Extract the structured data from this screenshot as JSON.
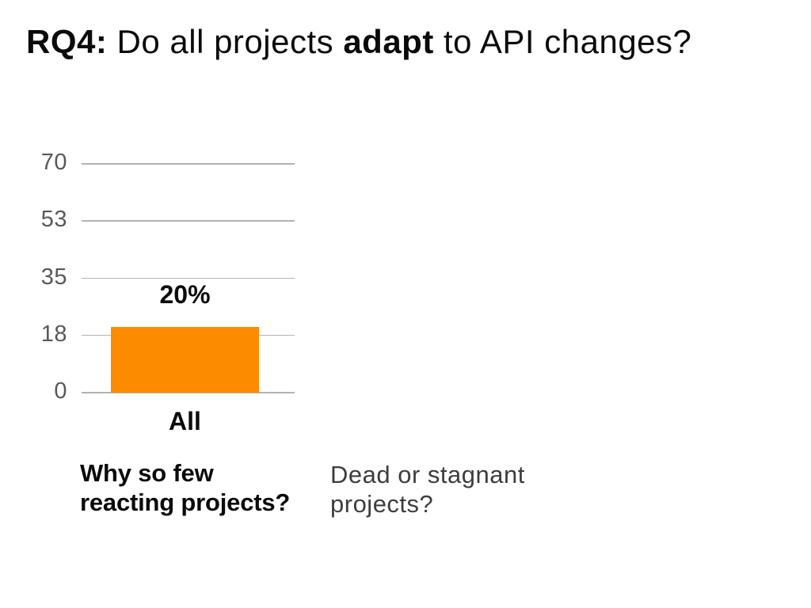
{
  "title": {
    "segments": [
      {
        "text": "RQ4:"
      },
      {
        "text": " Do all projects "
      },
      {
        "text": "adapt"
      },
      {
        "text": " to API changes?"
      }
    ]
  },
  "chart_data": {
    "type": "bar",
    "title": "",
    "categories": [
      "All"
    ],
    "values": [
      20
    ],
    "data_labels": [
      "20%"
    ],
    "ylabel": "",
    "xlabel": "",
    "ylim": [
      0,
      70
    ],
    "yticks": [
      0,
      18,
      35,
      53,
      70
    ],
    "grid": true,
    "legend": "none",
    "bar_color": "#fb8c00",
    "grid_color": "#b3b3b3",
    "tick_color": "#595959"
  },
  "notes": {
    "question": {
      "lines": [
        "Why so few",
        "reacting projects?"
      ]
    },
    "answer": {
      "lines": [
        "Dead or stagnant",
        "projects?"
      ]
    }
  }
}
